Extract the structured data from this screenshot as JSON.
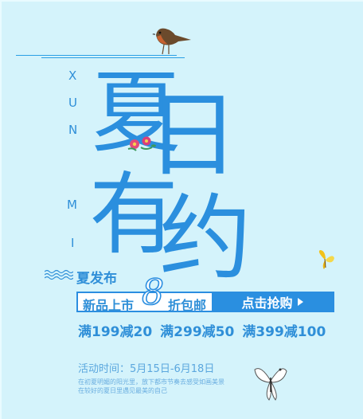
{
  "vertical_letters": [
    "X",
    "U",
    "N",
    "M",
    "I"
  ],
  "headline": [
    "夏",
    "日",
    "有",
    "约"
  ],
  "summer_release": "夏发布",
  "promo_bar": {
    "new_arrivals": "新品上市",
    "discount_number": "8",
    "discount_text": "折包邮",
    "button_label": "点击抢购"
  },
  "offers": [
    "满199减20",
    "满299减50",
    "满399减100"
  ],
  "event_time": "活动时间：5月15日-6月18日",
  "blurb_lines": [
    "在初夏明媚的阳光里，放下都市节奏去感受如画美景",
    "在较好的夏日里遇见最美的自己"
  ],
  "colors": {
    "primary": "#2b8fde",
    "background": "#d4f3fb"
  },
  "icons": [
    "bird-icon",
    "flower-icon",
    "yellow-butterfly-icon",
    "white-butterfly-icon",
    "waves-icon",
    "play-triangle-icon"
  ]
}
